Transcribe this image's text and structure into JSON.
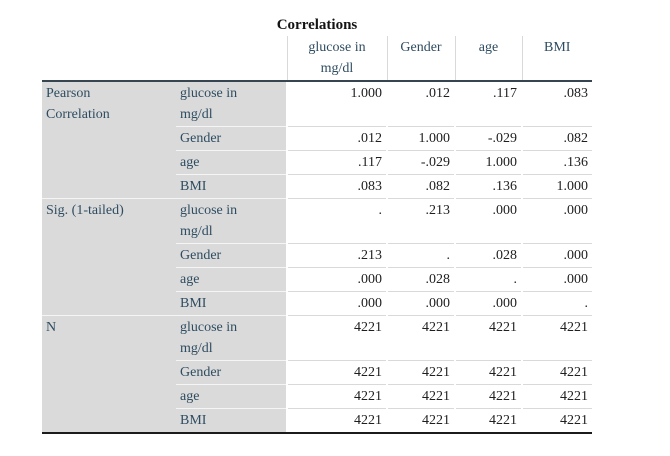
{
  "title": "Correlations",
  "colors": {
    "stub_bg": "#dadada",
    "label_ink": "#2e4c61",
    "value_ink": "#1e1e1e",
    "title_ink": "#141414",
    "dark_rule": "#36454f",
    "bottom_rule": "#1b1b1b",
    "sep_on_white": "#d9d9d9",
    "sep_on_gray": "#f5f5f5",
    "page_bg": "#ffffff"
  },
  "table": {
    "columns": [
      "glucose in\nmg/dl",
      "Gender",
      "age",
      "BMI"
    ],
    "groups": [
      {
        "label": "Pearson\nCorrelation",
        "rows": [
          {
            "label": "glucose in\nmg/dl",
            "values": [
              "1.000",
              ".012",
              ".117",
              ".083"
            ]
          },
          {
            "label": "Gender",
            "values": [
              ".012",
              "1.000",
              "-.029",
              ".082"
            ]
          },
          {
            "label": "age",
            "values": [
              ".117",
              "-.029",
              "1.000",
              ".136"
            ]
          },
          {
            "label": "BMI",
            "values": [
              ".083",
              ".082",
              ".136",
              "1.000"
            ]
          }
        ]
      },
      {
        "label": "Sig. (1-tailed)",
        "rows": [
          {
            "label": "glucose in\nmg/dl",
            "values": [
              ".",
              ".213",
              ".000",
              ".000"
            ]
          },
          {
            "label": "Gender",
            "values": [
              ".213",
              ".",
              ".028",
              ".000"
            ]
          },
          {
            "label": "age",
            "values": [
              ".000",
              ".028",
              ".",
              ".000"
            ]
          },
          {
            "label": "BMI",
            "values": [
              ".000",
              ".000",
              ".000",
              "."
            ]
          }
        ]
      },
      {
        "label": "N",
        "rows": [
          {
            "label": "glucose in\nmg/dl",
            "values": [
              "4221",
              "4221",
              "4221",
              "4221"
            ]
          },
          {
            "label": "Gender",
            "values": [
              "4221",
              "4221",
              "4221",
              "4221"
            ]
          },
          {
            "label": "age",
            "values": [
              "4221",
              "4221",
              "4221",
              "4221"
            ]
          },
          {
            "label": "BMI",
            "values": [
              "4221",
              "4221",
              "4221",
              "4221"
            ]
          }
        ]
      }
    ]
  }
}
